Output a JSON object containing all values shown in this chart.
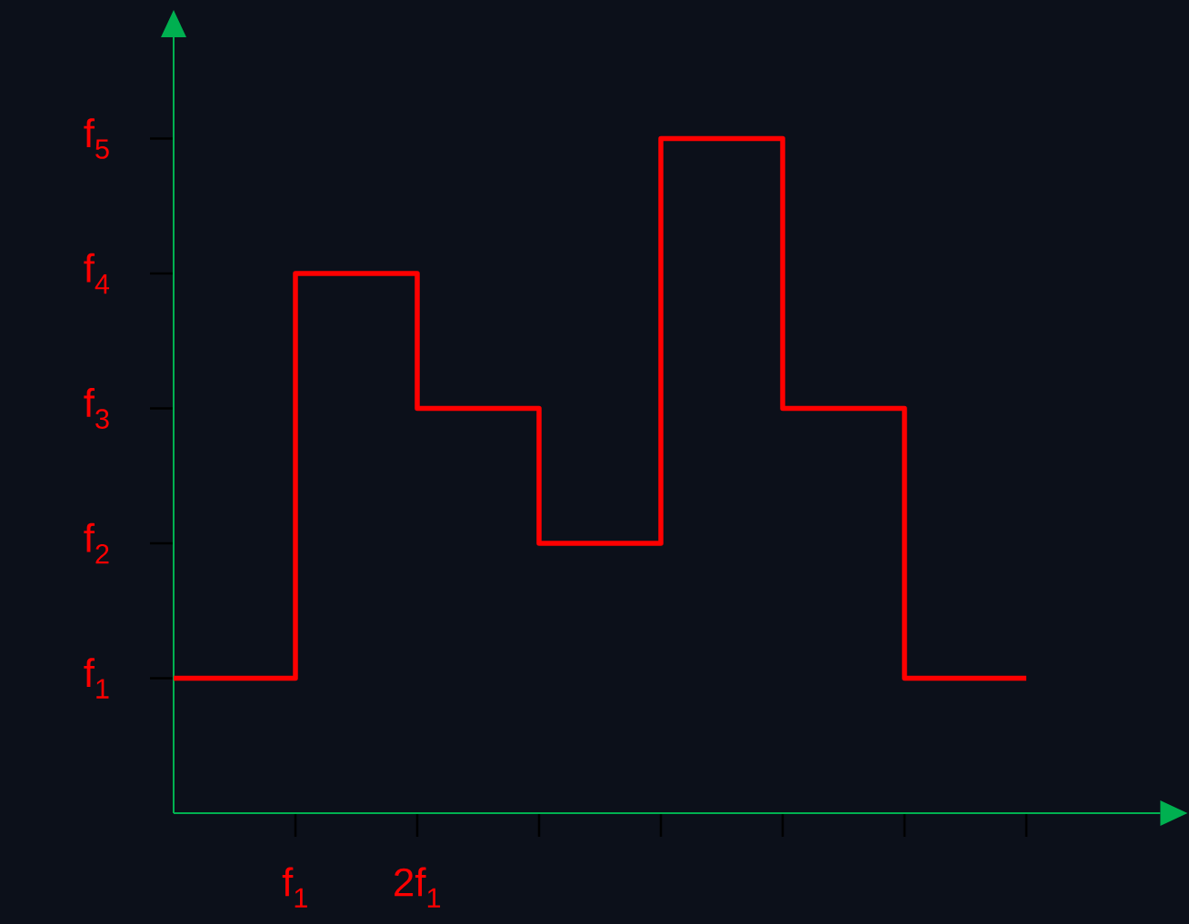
{
  "chart_data": {
    "type": "step",
    "categories": [
      null,
      "f$_{1}$",
      "2f$_{1}$",
      null,
      null,
      null,
      null,
      null
    ],
    "series": [
      {
        "color": "#ff0000",
        "values": [
          1,
          4,
          3,
          2,
          5,
          3,
          1,
          1
        ]
      }
    ],
    "ylim": [
      0,
      5.75
    ],
    "yticks": [
      {
        "value": 1,
        "label": "f$_{1}$"
      },
      {
        "value": 2,
        "label": "f$_{2}$"
      },
      {
        "value": 3,
        "label": "f$_{3}$"
      },
      {
        "value": 4,
        "label": "f$_{4}$"
      },
      {
        "value": 5,
        "label": "f$_{5}$"
      }
    ]
  }
}
